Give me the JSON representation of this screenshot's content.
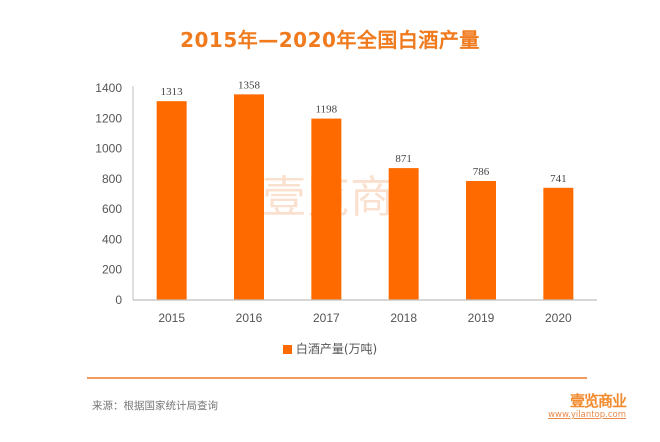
{
  "chart_data": {
    "type": "bar",
    "title": "2015年—2020年全国白酒产量",
    "categories": [
      "2015",
      "2016",
      "2017",
      "2018",
      "2019",
      "2020"
    ],
    "series": [
      {
        "name": "白酒产量(万吨)",
        "values": [
          1313,
          1358,
          1198,
          871,
          786,
          741
        ],
        "color": "#ff6a00"
      }
    ],
    "data_labels": [
      "1313",
      "1358",
      "1198",
      "871",
      "786",
      "741"
    ],
    "yticks": [
      "0",
      "200",
      "400",
      "600",
      "800",
      "1000",
      "1200",
      "1400"
    ],
    "ytick_values": [
      0,
      200,
      400,
      600,
      800,
      1000,
      1200,
      1400
    ],
    "ylim": [
      0,
      1400
    ],
    "xlabel": "",
    "ylabel": "",
    "grid": false,
    "legend": "bottom-center"
  },
  "colors": {
    "title": "#f07a1e",
    "bar": "#ff6a00",
    "axis": "#bfbfbf",
    "divider": "#f29a5a"
  },
  "watermark": "壹览商",
  "footer": {
    "source": "来源：根据国家统计局查询",
    "logo_text": "壹览商业",
    "logo_url": "www.yilantop.com"
  }
}
